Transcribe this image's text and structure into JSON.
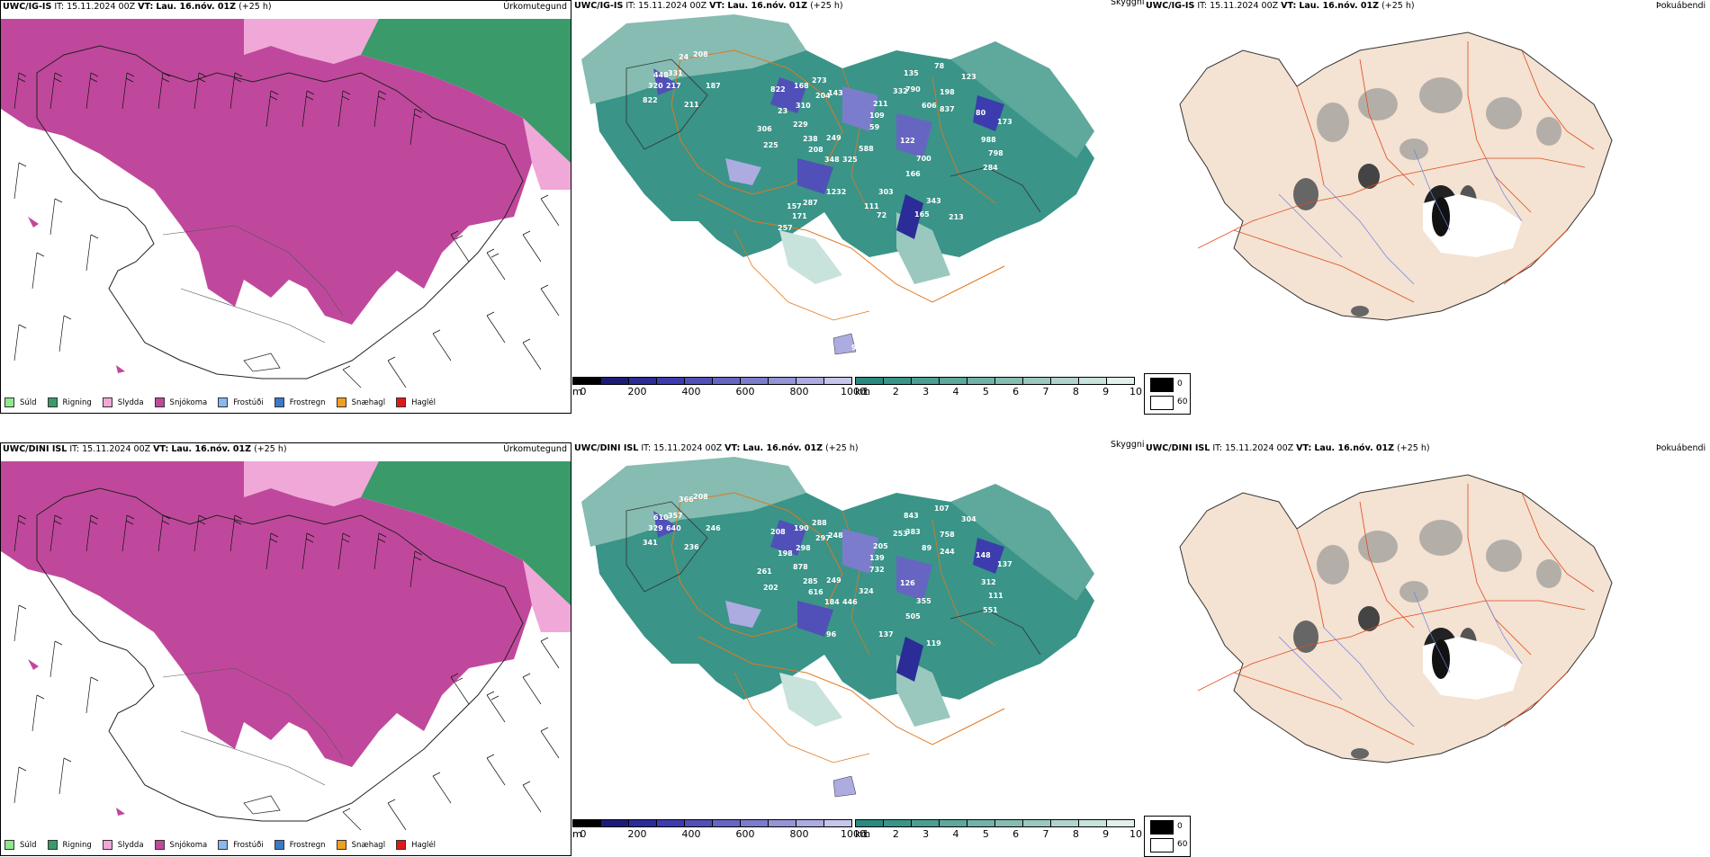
{
  "rows": [
    {
      "model": "UWC/IG-IS",
      "it_label": "IT:",
      "issue_time": "15.11.2024 00Z",
      "vt_label": "VT:",
      "valid_time": "Lau. 16.nóv. 01Z",
      "lead": "(+25 h)",
      "precip_var": "Úrkomutegund",
      "cloud_var": "Skyggni",
      "fog_var": "Þokuábendi",
      "labels": [
        "448",
        "320",
        "331",
        "217",
        "822",
        "24",
        "208",
        "211",
        "187",
        "822",
        "23",
        "306",
        "225",
        "229",
        "310",
        "168",
        "273",
        "204",
        "143",
        "238",
        "249",
        "208",
        "348",
        "325",
        "588",
        "109",
        "211",
        "59",
        "135",
        "332",
        "790",
        "606",
        "78",
        "198",
        "837",
        "123",
        "80",
        "173",
        "988",
        "798",
        "284",
        "122",
        "700",
        "166",
        "1232",
        "303",
        "343",
        "157",
        "287",
        "171",
        "257",
        "111",
        "72",
        "165",
        "213",
        "99"
      ]
    },
    {
      "model": "UWC/DINI ISL",
      "it_label": "IT:",
      "issue_time": "15.11.2024 00Z",
      "vt_label": "VT:",
      "valid_time": "Lau. 16.nóv. 01Z",
      "lead": "(+25 h)",
      "precip_var": "Úrkomutegund",
      "cloud_var": "Skyggni",
      "fog_var": "Þokuábendi",
      "labels": [
        "610",
        "329",
        "357",
        "640",
        "341",
        "366",
        "208",
        "236",
        "246",
        "208",
        "198",
        "261",
        "202",
        "878",
        "298",
        "190",
        "288",
        "297",
        "248",
        "285",
        "249",
        "616",
        "184",
        "446",
        "324",
        "139",
        "205",
        "732",
        "843",
        "253",
        "383",
        "89",
        "107",
        "758",
        "244",
        "304",
        "148",
        "137",
        "312",
        "111",
        "551",
        "126",
        "355",
        "505",
        "96",
        "137",
        "119"
      ]
    }
  ],
  "precip_legend": [
    {
      "label": "Súld",
      "color": "#8ee88e"
    },
    {
      "label": "Rigning",
      "color": "#3a9a6a"
    },
    {
      "label": "Slydda",
      "color": "#f0a8d8"
    },
    {
      "label": "Snjókoma",
      "color": "#c0489c"
    },
    {
      "label": "Frostúði",
      "color": "#8ab8f0"
    },
    {
      "label": "Frostregn",
      "color": "#3a7ac8"
    },
    {
      "label": "Snæhagl",
      "color": "#f0a020"
    },
    {
      "label": "Haglél",
      "color": "#e01818"
    }
  ],
  "cloud_base_bar": {
    "unit": "m",
    "ticks": [
      "0",
      "200",
      "400",
      "600",
      "800",
      "1000"
    ],
    "colors": [
      "#000000",
      "#1c1c78",
      "#2c2c98",
      "#3c3cae",
      "#5050b8",
      "#6666c2",
      "#7c7ccc",
      "#9494d6",
      "#acace0",
      "#c6c6ea"
    ]
  },
  "visibility_bar": {
    "unit": "km",
    "ticks": [
      "1",
      "2",
      "3",
      "4",
      "5",
      "6",
      "7",
      "8",
      "9",
      "10"
    ],
    "colors": [
      "#2a8a80",
      "#3a9488",
      "#4c9e92",
      "#5ea89c",
      "#72b2a8",
      "#86bcb2",
      "#9ac8be",
      "#b0d4cc",
      "#c8e2dc",
      "#e2f0ec"
    ]
  },
  "fog_bar": {
    "ticks": [
      "0",
      "60"
    ]
  }
}
